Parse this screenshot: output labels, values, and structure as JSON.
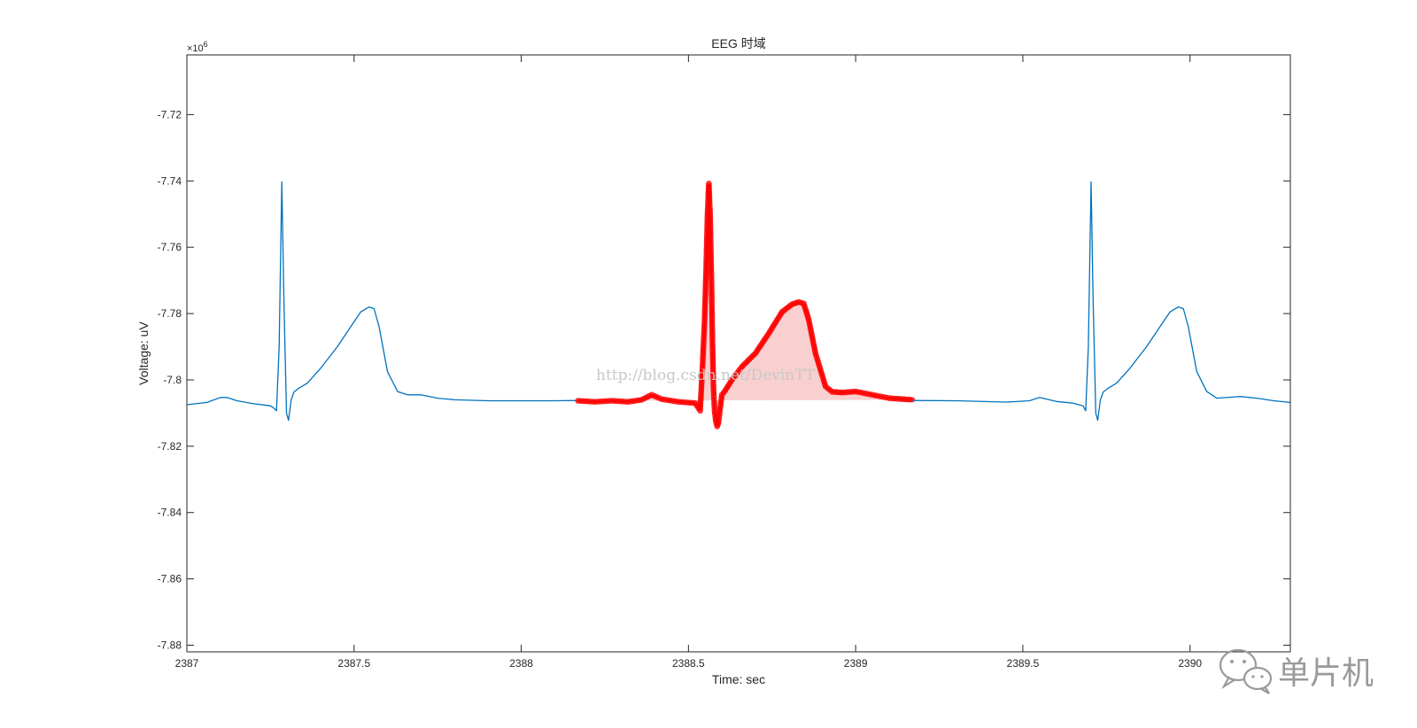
{
  "watermark": "http://blog.csdn.net/DevinTT",
  "brand": {
    "label": "单片机",
    "icon": "wechat-icon"
  },
  "colors": {
    "signal": "#0072BD",
    "highlight": "#ff0000",
    "highlight_fill": "#f4a0a0",
    "axis": "#262626",
    "background": "#ffffff"
  },
  "chart_data": {
    "type": "line",
    "title": "EEG 时域",
    "xlabel": "Time: sec",
    "ylabel": "Voltage: uV",
    "y_exponent": "×10",
    "y_exponent_power": "6",
    "xlim": [
      2387,
      2390.3
    ],
    "ylim": [
      -7.882,
      -7.702
    ],
    "xticks": [
      2387,
      2387.5,
      2388,
      2388.5,
      2389,
      2389.5,
      2390
    ],
    "xtick_labels": [
      "2387",
      "2387.5",
      "2388",
      "2388.5",
      "2389",
      "2389.5",
      "2390"
    ],
    "yticks": [
      -7.72,
      -7.74,
      -7.76,
      -7.78,
      -7.8,
      -7.82,
      -7.84,
      -7.86,
      -7.88
    ],
    "ytick_labels": [
      "-7.72",
      "-7.74",
      "-7.76",
      "-7.78",
      "-7.8",
      "-7.82",
      "-7.84",
      "-7.86",
      "-7.88"
    ],
    "grid": false,
    "legend": "none",
    "series": [
      {
        "style": "line",
        "color": "#0072BD",
        "x": [
          2387.0,
          2387.06,
          2387.1,
          2387.12,
          2387.15,
          2387.2,
          2387.25,
          2387.26,
          2387.268,
          2387.276,
          2387.284,
          2387.29,
          2387.298,
          2387.304,
          2387.312,
          2387.32,
          2387.335,
          2387.36,
          2387.4,
          2387.45,
          2387.49,
          2387.52,
          2387.545,
          2387.56,
          2387.575,
          2387.6,
          2387.63,
          2387.66,
          2387.7,
          2387.75,
          2387.8,
          2387.9,
          2388.0,
          2388.1,
          2388.17
        ],
        "y": [
          -7.8075,
          -7.8068,
          -7.8053,
          -7.8053,
          -7.8063,
          -7.8072,
          -7.8078,
          -7.8085,
          -7.8093,
          -7.79,
          -7.7403,
          -7.775,
          -7.81,
          -7.8122,
          -7.806,
          -7.8037,
          -7.8025,
          -7.801,
          -7.7965,
          -7.79,
          -7.784,
          -7.7795,
          -7.778,
          -7.7785,
          -7.784,
          -7.7975,
          -7.8035,
          -7.8045,
          -7.8045,
          -7.8055,
          -7.806,
          -7.8063,
          -7.8063,
          -7.8063,
          -7.8062
        ]
      },
      {
        "style": "markers",
        "color": "#ff0000",
        "x": [
          2388.17,
          2388.22,
          2388.27,
          2388.32,
          2388.36,
          2388.39,
          2388.42,
          2388.47,
          2388.52,
          2388.535,
          2388.542,
          2388.548,
          2388.553,
          2388.557,
          2388.561,
          2388.565,
          2388.569,
          2388.572,
          2388.575,
          2388.578,
          2388.582,
          2388.586,
          2388.59,
          2388.595,
          2388.6,
          2388.61,
          2388.63,
          2388.66,
          2388.7,
          2388.74,
          2388.78,
          2388.81,
          2388.83,
          2388.845,
          2388.86,
          2388.88,
          2388.91,
          2388.93,
          2388.96,
          2389.0,
          2389.05,
          2389.1,
          2389.17
        ],
        "y": [
          -7.8063,
          -7.8066,
          -7.8063,
          -7.8066,
          -7.806,
          -7.8045,
          -7.8058,
          -7.8066,
          -7.807,
          -7.8093,
          -7.796,
          -7.7825,
          -7.766,
          -7.75,
          -7.7408,
          -7.751,
          -7.771,
          -7.789,
          -7.8025,
          -7.8092,
          -7.8125,
          -7.814,
          -7.8128,
          -7.8085,
          -7.8045,
          -7.8032,
          -7.8,
          -7.796,
          -7.792,
          -7.786,
          -7.7795,
          -7.7772,
          -7.7765,
          -7.777,
          -7.782,
          -7.792,
          -7.802,
          -7.8036,
          -7.8038,
          -7.8035,
          -7.8045,
          -7.8055,
          -7.806
        ]
      },
      {
        "style": "line",
        "color": "#0072BD",
        "x": [
          2389.17,
          2389.3,
          2389.45,
          2389.52,
          2389.55,
          2389.6,
          2389.65,
          2389.68,
          2389.688,
          2389.696,
          2389.704,
          2389.71,
          2389.718,
          2389.724,
          2389.732,
          2389.74,
          2389.755,
          2389.78,
          2389.82,
          2389.87,
          2389.91,
          2389.94,
          2389.965,
          2389.98,
          2389.995,
          2390.02,
          2390.05,
          2390.08,
          2390.15,
          2390.2,
          2390.25,
          2390.3
        ],
        "y": [
          -7.8062,
          -7.8063,
          -7.8067,
          -7.8063,
          -7.8053,
          -7.8065,
          -7.807,
          -7.8078,
          -7.8093,
          -7.79,
          -7.7403,
          -7.775,
          -7.81,
          -7.8122,
          -7.806,
          -7.8037,
          -7.8025,
          -7.801,
          -7.7965,
          -7.79,
          -7.784,
          -7.7795,
          -7.778,
          -7.7785,
          -7.784,
          -7.7975,
          -7.8035,
          -7.8055,
          -7.805,
          -7.8055,
          -7.8063,
          -7.8068
        ]
      }
    ]
  }
}
